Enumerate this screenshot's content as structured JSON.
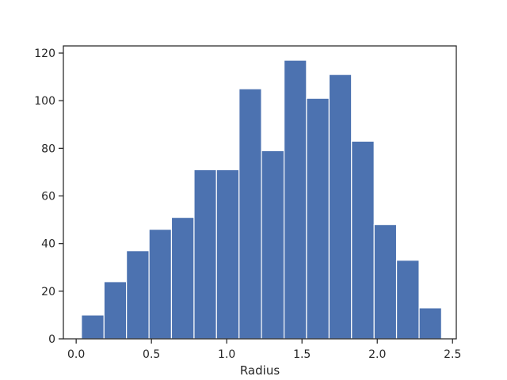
{
  "chart_data": {
    "type": "bar",
    "style": "histogram",
    "xlabel": "Radius",
    "ylabel": "",
    "xlim": [
      -0.085,
      2.525
    ],
    "ylim": [
      0,
      123
    ],
    "xticks": [
      0.0,
      0.5,
      1.0,
      1.5,
      2.0,
      2.5
    ],
    "xtick_labels": [
      "0.0",
      "0.5",
      "1.0",
      "1.5",
      "2.0",
      "2.5"
    ],
    "yticks": [
      0,
      20,
      40,
      60,
      80,
      100,
      120
    ],
    "ytick_labels": [
      "0",
      "20",
      "40",
      "60",
      "80",
      "100",
      "120"
    ],
    "bin_edges": [
      0.035,
      0.185,
      0.334,
      0.484,
      0.633,
      0.783,
      0.932,
      1.082,
      1.231,
      1.381,
      1.53,
      1.68,
      1.829,
      1.979,
      2.128,
      2.278,
      2.427
    ],
    "values": [
      10,
      24,
      37,
      46,
      51,
      71,
      71,
      105,
      79,
      117,
      101,
      111,
      83,
      48,
      33,
      13
    ],
    "bar_color": "#4c72b0",
    "edge_color": "#ffffff",
    "grid": false
  }
}
